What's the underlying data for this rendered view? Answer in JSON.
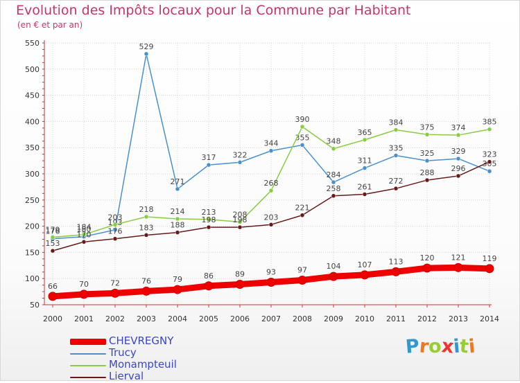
{
  "header": {
    "title": "Evolution des Impôts locaux pour la Commune par Habitant",
    "subtitle": "(en € et par an)"
  },
  "logo": {
    "text": "Proxiti",
    "colors": [
      "#3399cc",
      "#ee7722",
      "#99cc33",
      "#ee3333",
      "#3399cc",
      "#99cc33",
      "#ee7722"
    ]
  },
  "chart_data": {
    "type": "line",
    "x": [
      "2000",
      "2001",
      "2002",
      "2003",
      "2004",
      "2005",
      "2006",
      "2007",
      "2008",
      "2009",
      "2010",
      "2011",
      "2012",
      "2013",
      "2014"
    ],
    "ylim": [
      50,
      550
    ],
    "yticks": [
      50,
      100,
      150,
      200,
      250,
      300,
      350,
      400,
      450,
      500,
      550
    ],
    "grid": true,
    "legend_position": "bottom-left",
    "series": [
      {
        "name": "CHEVREGNY",
        "color": "#ee0000",
        "emphasis": true,
        "values": [
          66,
          70,
          72,
          76,
          79,
          86,
          89,
          93,
          97,
          104,
          107,
          113,
          120,
          121,
          119
        ]
      },
      {
        "name": "Trucy",
        "color": "#4a90cc",
        "values": [
          176,
          180,
          193,
          529,
          271,
          317,
          322,
          344,
          355,
          284,
          311,
          335,
          325,
          329,
          305
        ]
      },
      {
        "name": "Monampteuil",
        "color": "#88cc44",
        "values": [
          179,
          184,
          203,
          218,
          214,
          213,
          208,
          268,
          390,
          348,
          365,
          384,
          375,
          374,
          385
        ]
      },
      {
        "name": "Lierval",
        "color": "#661a1a",
        "values": [
          153,
          170,
          176,
          183,
          188,
          198,
          198,
          203,
          221,
          258,
          261,
          272,
          288,
          296,
          323
        ]
      }
    ]
  }
}
